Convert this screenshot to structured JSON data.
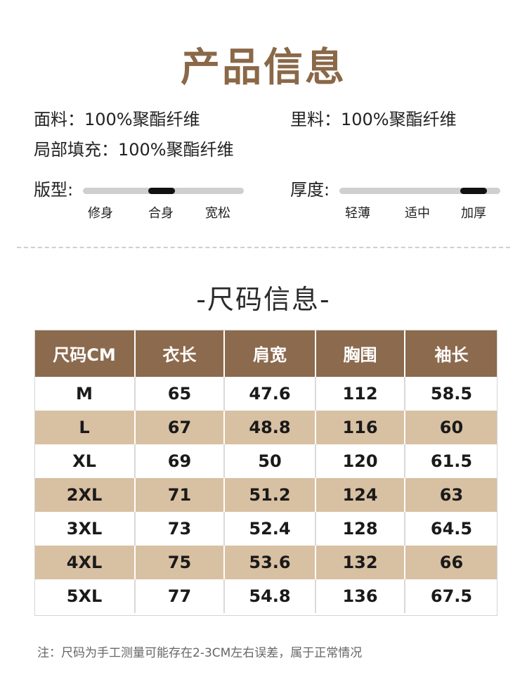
{
  "header": {
    "title": "产品信息"
  },
  "materials": {
    "fabric": "面料：100%聚酯纤维",
    "lining": "里料：100%聚酯纤维",
    "fill": "局部填充：100%聚酯纤维"
  },
  "fit": {
    "label": "版型:",
    "options": [
      "修身",
      "合身",
      "宽松"
    ],
    "selected_index": 1
  },
  "thickness": {
    "label": "厚度:",
    "options": [
      "轻薄",
      "适中",
      "加厚"
    ],
    "selected_index": 2
  },
  "size_section": {
    "title": "-尺码信息-",
    "headers": [
      "尺码CM",
      "衣长",
      "肩宽",
      "胸围",
      "袖长"
    ],
    "rows": [
      [
        "M",
        "65",
        "47.6",
        "112",
        "58.5"
      ],
      [
        "L",
        "67",
        "48.8",
        "116",
        "60"
      ],
      [
        "XL",
        "69",
        "50",
        "120",
        "61.5"
      ],
      [
        "2XL",
        "71",
        "51.2",
        "124",
        "63"
      ],
      [
        "3XL",
        "73",
        "52.4",
        "128",
        "64.5"
      ],
      [
        "4XL",
        "75",
        "53.6",
        "132",
        "66"
      ],
      [
        "5XL",
        "77",
        "54.8",
        "136",
        "67.5"
      ]
    ]
  },
  "footer": {
    "note": "注：尺码为手工测量可能存在2-3CM左右误差，属于正常情况"
  },
  "colors": {
    "title": "#8a6848",
    "header_bg": "#8c6a4d",
    "stripe_bg": "#d8c0a2",
    "gauge_track": "#cfcfcf",
    "gauge_knob": "#111111"
  }
}
